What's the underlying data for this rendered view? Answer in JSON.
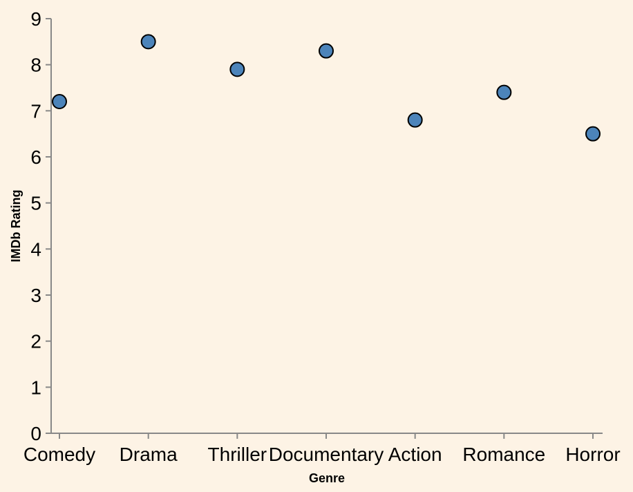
{
  "chart_data": {
    "type": "scatter",
    "categories": [
      "Comedy",
      "Drama",
      "Thriller",
      "Documentary",
      "Action",
      "Romance",
      "Horror"
    ],
    "values": [
      7.2,
      8.5,
      7.9,
      8.3,
      6.8,
      7.4,
      6.5
    ],
    "xlabel": "Genre",
    "ylabel": "IMDb Rating",
    "ylim": [
      0,
      9
    ],
    "yticks": [
      "0",
      "1",
      "2",
      "3",
      "4",
      "5",
      "6",
      "7",
      "8",
      "9"
    ],
    "grid": false,
    "colors": {
      "point_fill": "#4C84BA",
      "point_stroke": "#000000",
      "background": "#FDF3E5",
      "axis": "#888888"
    }
  }
}
